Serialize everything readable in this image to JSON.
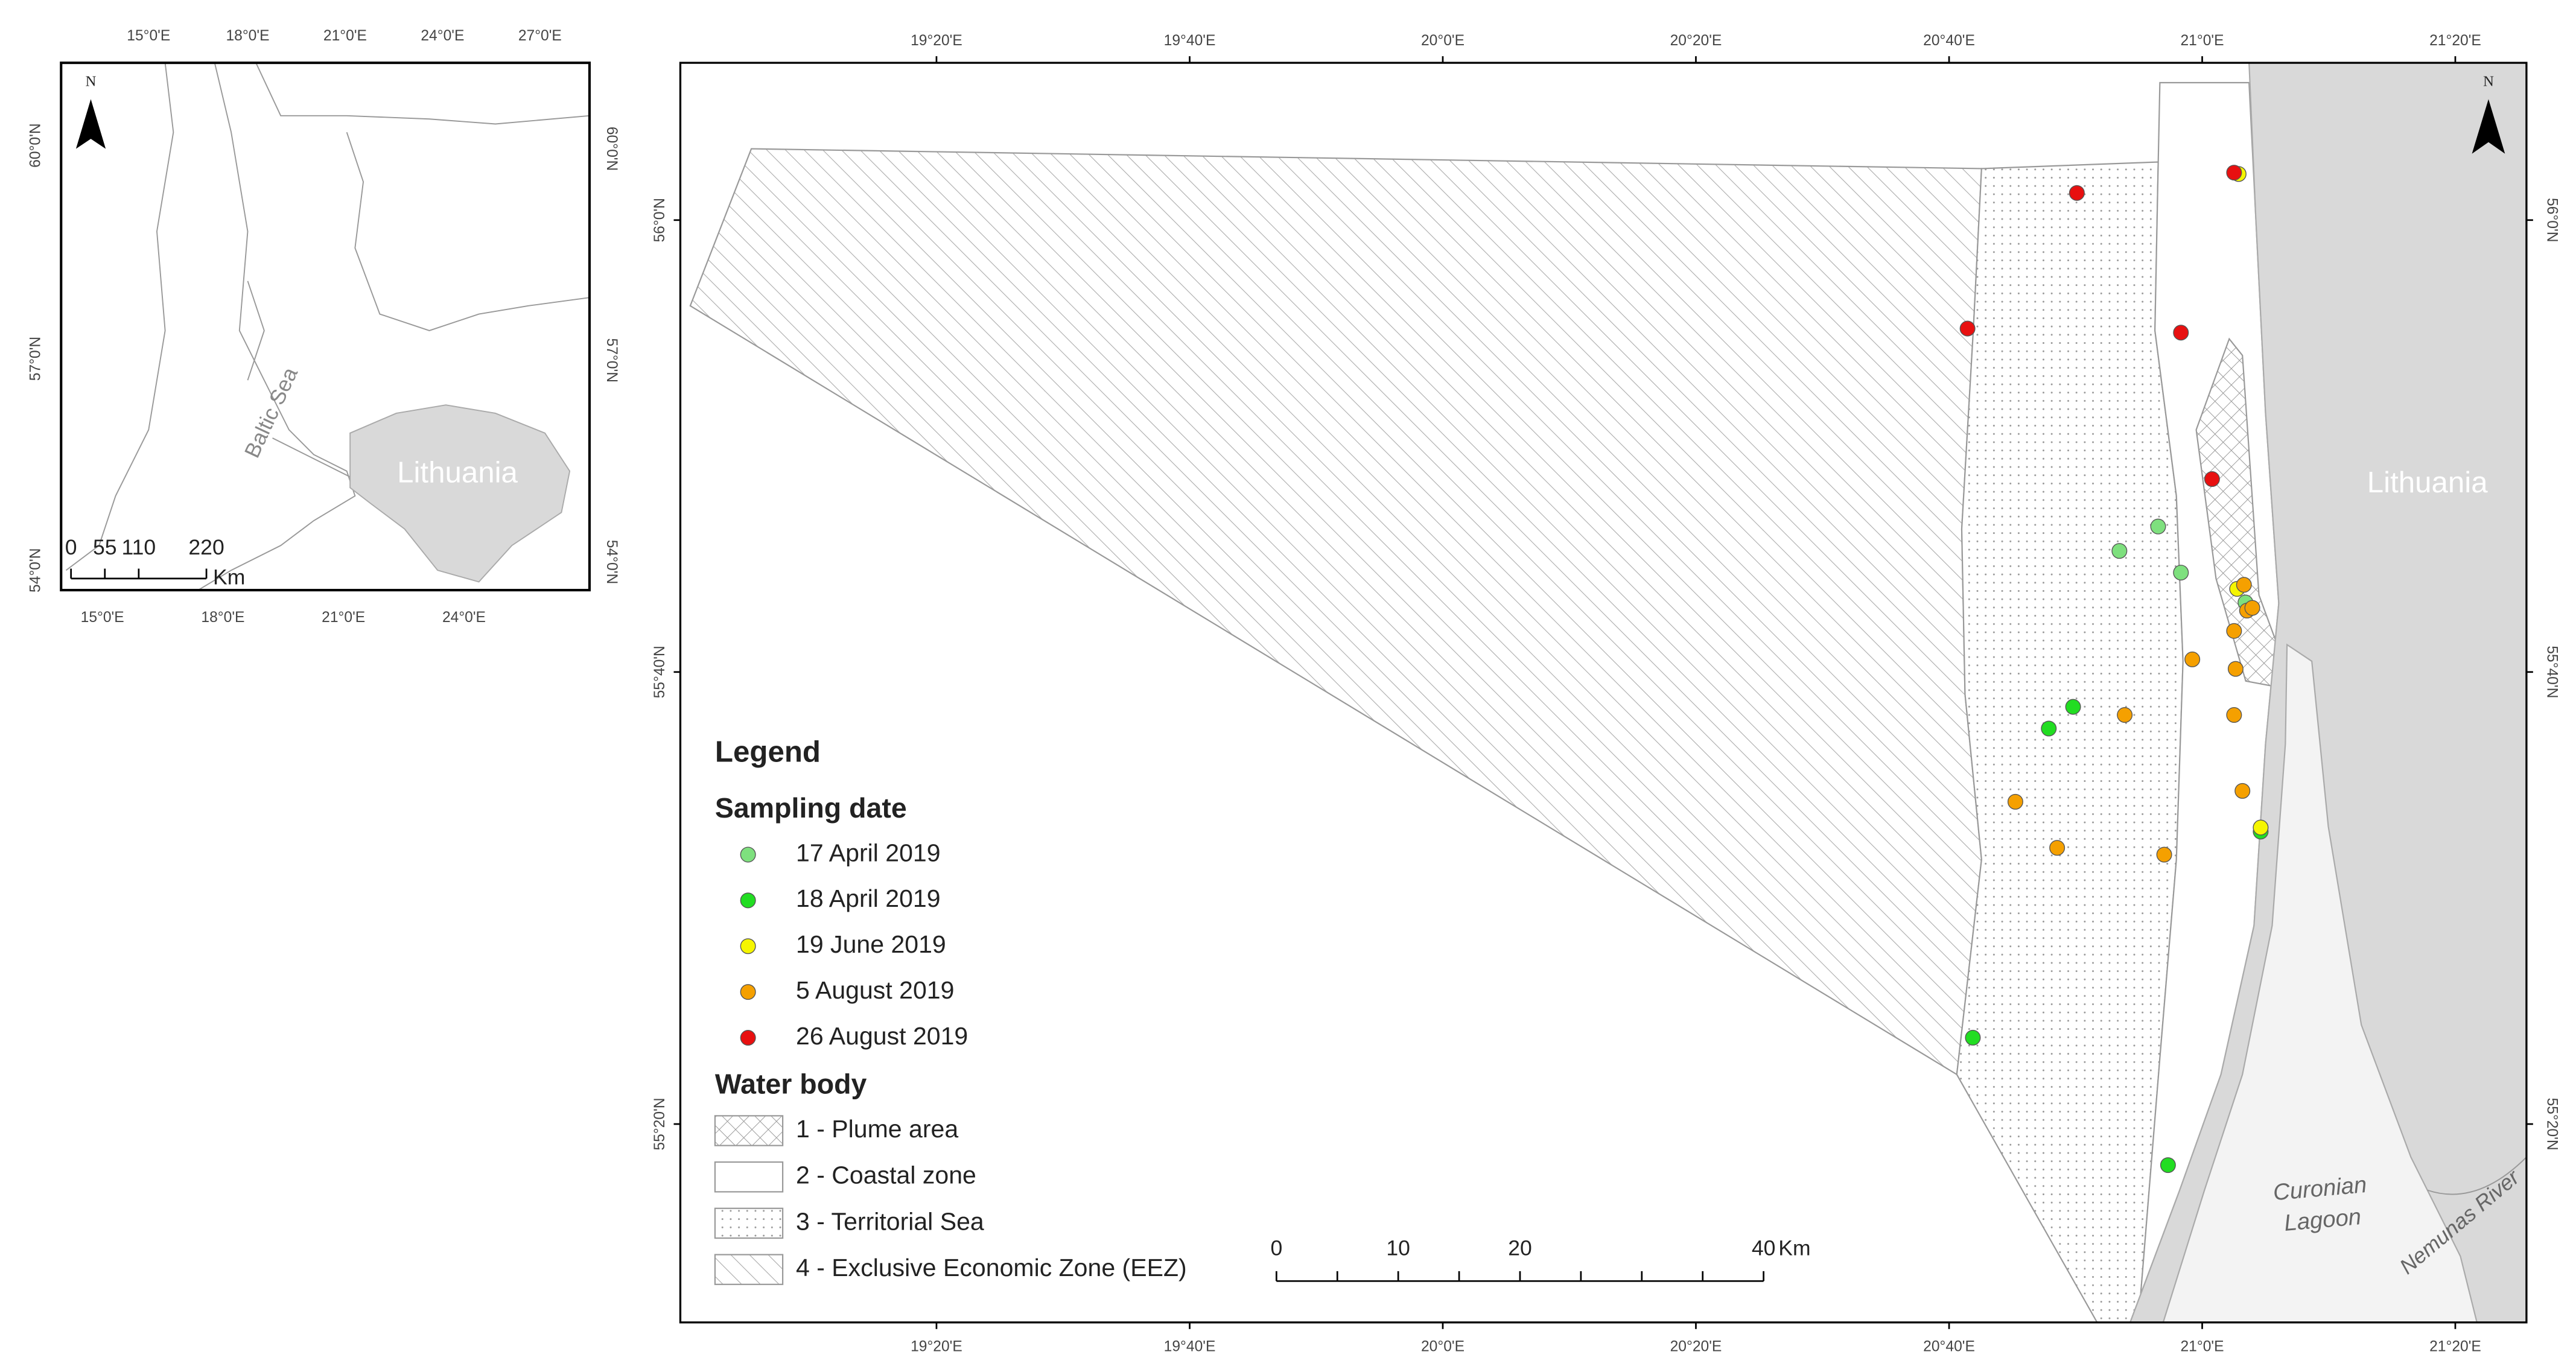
{
  "inset": {
    "lon_top": [
      "15°0'E",
      "18°0'E",
      "21°0'E",
      "24°0'E",
      "27°0'E"
    ],
    "lon_bottom": [
      "15°0'E",
      "18°0'E",
      "21°0'E",
      "24°0'E"
    ],
    "lat_left": [
      "60°0'N",
      "57°0'N",
      "54°0'N"
    ],
    "lat_right": [
      "60°0'N",
      "57°0'N",
      "54°0'N"
    ],
    "sea": "Baltic Sea",
    "country": "Lithuania",
    "north": "N",
    "scale": {
      "ticks": [
        0,
        55,
        110,
        220
      ],
      "unit": "Km"
    }
  },
  "chart_data": {
    "type": "scatter",
    "xlim": [
      18.996,
      21.427
    ],
    "ylim": [
      55.187,
      56.116
    ],
    "xticks": [
      {
        "value": 19.3333,
        "label": "19°20'E"
      },
      {
        "value": 19.6667,
        "label": "19°40'E"
      },
      {
        "value": 20.0,
        "label": "20°0'E"
      },
      {
        "value": 20.3333,
        "label": "20°20'E"
      },
      {
        "value": 20.6667,
        "label": "20°40'E"
      },
      {
        "value": 21.0,
        "label": "21°0'E"
      },
      {
        "value": 21.3333,
        "label": "21°20'E"
      }
    ],
    "yticks": [
      {
        "value": 56.0,
        "label": "56°0'N"
      },
      {
        "value": 55.6667,
        "label": "55°40'N"
      },
      {
        "value": 55.3333,
        "label": "55°20'N"
      }
    ],
    "legend_title": "Legend",
    "legend_subtitle": "Sampling date",
    "series": [
      {
        "name": "17 April 2019",
        "color": "#7ee07e",
        "x": [
          20.942,
          20.891,
          20.972,
          21.057
        ],
        "values": [
          55.774,
          55.756,
          55.74,
          55.718
        ]
      },
      {
        "name": "18 April 2019",
        "color": "#22dd22",
        "x": [
          20.83,
          20.798,
          20.698,
          20.955,
          21.077
        ],
        "values": [
          55.641,
          55.625,
          55.397,
          55.303,
          55.549
        ]
      },
      {
        "name": "19 June 2019",
        "color": "#f5f500",
        "x": [
          21.048,
          21.046,
          21.077
        ],
        "values": [
          56.034,
          55.728,
          55.552
        ]
      },
      {
        "name": "5 August 2019",
        "color": "#f5a000",
        "x": [
          21.055,
          21.059,
          21.066,
          21.042,
          20.987,
          21.044,
          20.898,
          21.042,
          21.053,
          20.754,
          20.809,
          20.95
        ],
        "values": [
          55.731,
          55.712,
          55.714,
          55.697,
          55.676,
          55.669,
          55.635,
          55.635,
          55.579,
          55.571,
          55.537,
          55.532
        ]
      },
      {
        "name": "26 August 2019",
        "color": "#e81010",
        "x": [
          21.042,
          20.835,
          20.691,
          20.972,
          21.013
        ],
        "values": [
          56.035,
          56.02,
          55.92,
          55.917,
          55.809
        ]
      }
    ],
    "north": "N",
    "country": "Lithuania",
    "lagoon": "Curonian Lagoon",
    "river": "Nemunas River",
    "scale": {
      "ticks": [
        0,
        10,
        20,
        40
      ],
      "unit": "Km"
    }
  },
  "water_body": {
    "title": "Water body",
    "items": [
      "1 - Plume area",
      "2 - Coastal zone",
      "3 - Territorial Sea",
      "4 - Exclusive Economic Zone (EEZ)"
    ]
  }
}
